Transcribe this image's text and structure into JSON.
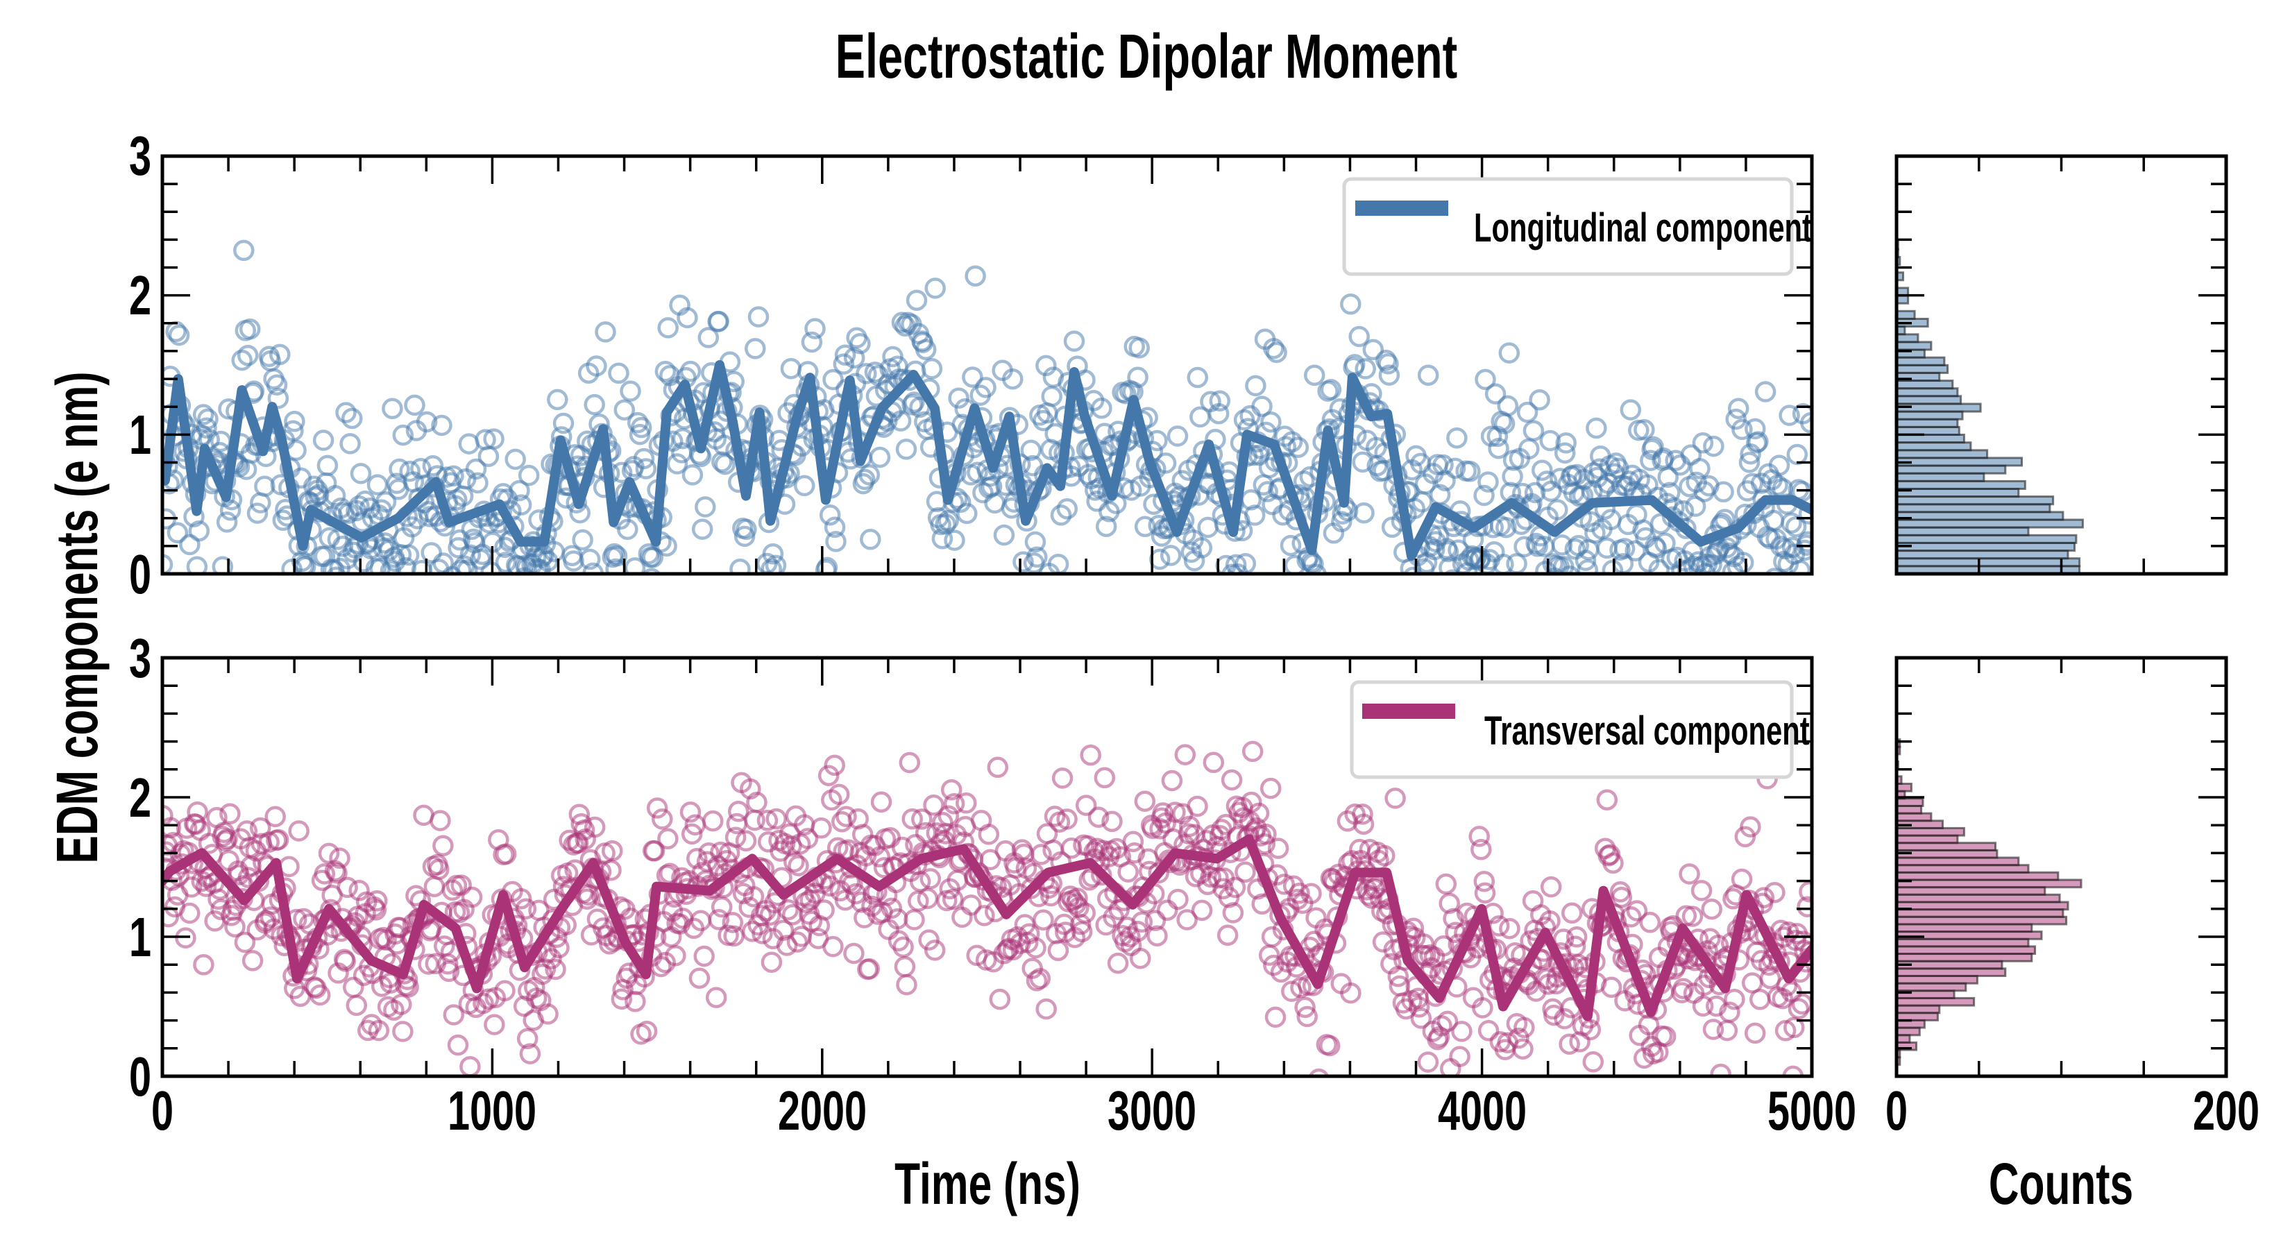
{
  "colors": {
    "longitudinal": "#4477aa",
    "transversal": "#aa3377",
    "hist_edge": "#222222",
    "legend_edge": "#d6d6d6"
  },
  "chart_data": [
    {
      "type": "line",
      "panel": "top-main",
      "title": "Electrostatic Dipolar Moment",
      "xlabel": "Time (ns)",
      "ylabel": "EDM components (e nm)",
      "xlim": [
        0,
        5000
      ],
      "ylim": [
        0,
        3
      ],
      "xticks": [
        "0",
        "1000",
        "2000",
        "3000",
        "4000",
        "5000"
      ],
      "yticks": [
        "0",
        "1",
        "2",
        "3"
      ],
      "legend": {
        "label": "Longitudinal component",
        "placement": "top-right"
      },
      "series": [
        {
          "name": "Longitudinal component",
          "style": "scatter (open circles) + running average line",
          "scatter_spread": 0.35,
          "x": [
            0,
            8,
            48,
            104,
            128,
            193,
            241,
            305,
            333,
            362,
            426,
            450,
            603,
            715,
            829,
            869,
            1022,
            1086,
            1158,
            1207,
            1262,
            1336,
            1368,
            1416,
            1496,
            1529,
            1584,
            1632,
            1689,
            1729,
            1769,
            1810,
            1843,
            1923,
            1963,
            2011,
            2084,
            2116,
            2181,
            2277,
            2341,
            2381,
            2462,
            2518,
            2567,
            2617,
            2682,
            2722,
            2764,
            2796,
            2878,
            2944,
            2993,
            3075,
            3172,
            3246,
            3288,
            3370,
            3484,
            3533,
            3582,
            3607,
            3664,
            3713,
            3786,
            3860,
            3975,
            4090,
            4220,
            4335,
            4515,
            4663,
            4777,
            4859,
            4941,
            5000
          ],
          "y": [
            0.8,
            0.67,
            1.4,
            0.45,
            0.9,
            0.55,
            1.32,
            0.88,
            1.2,
            0.96,
            0.2,
            0.46,
            0.26,
            0.4,
            0.66,
            0.37,
            0.5,
            0.23,
            0.23,
            0.96,
            0.5,
            1.04,
            0.37,
            0.66,
            0.23,
            1.16,
            1.36,
            0.9,
            1.5,
            1.09,
            0.56,
            1.16,
            0.38,
            1.12,
            1.41,
            0.53,
            1.39,
            0.81,
            1.19,
            1.43,
            1.19,
            0.53,
            1.19,
            0.76,
            1.13,
            0.38,
            0.76,
            0.63,
            1.45,
            1.13,
            0.56,
            1.25,
            0.8,
            0.3,
            0.93,
            0.3,
            1.0,
            0.93,
            0.17,
            1.03,
            0.51,
            1.41,
            1.13,
            1.15,
            0.13,
            0.48,
            0.33,
            0.51,
            0.3,
            0.51,
            0.53,
            0.23,
            0.33,
            0.53,
            0.53,
            0.46
          ]
        }
      ]
    },
    {
      "type": "line",
      "panel": "bottom-main",
      "xlabel": "Time (ns)",
      "xlim": [
        0,
        5000
      ],
      "ylim": [
        0,
        3
      ],
      "xticks": [
        "0",
        "1000",
        "2000",
        "3000",
        "4000",
        "5000"
      ],
      "yticks": [
        "0",
        "1",
        "2",
        "3"
      ],
      "legend": {
        "label": "Transversal component",
        "placement": "top-right"
      },
      "series": [
        {
          "name": "Transversal component",
          "style": "scatter (open circles) + running average line",
          "scatter_spread": 0.3,
          "x": [
            0,
            23,
            120,
            248,
            345,
            408,
            505,
            633,
            730,
            793,
            889,
            953,
            1033,
            1098,
            1210,
            1306,
            1403,
            1466,
            1498,
            1659,
            1788,
            1883,
            2045,
            2173,
            2301,
            2429,
            2558,
            2685,
            2813,
            2941,
            3069,
            3197,
            3294,
            3390,
            3502,
            3615,
            3711,
            3775,
            3871,
            3999,
            4064,
            4192,
            4320,
            4368,
            4512,
            4608,
            4737,
            4802,
            4930,
            5000
          ],
          "y": [
            1.4,
            1.47,
            1.6,
            1.26,
            1.53,
            0.7,
            1.2,
            0.83,
            0.73,
            1.23,
            1.06,
            0.63,
            1.3,
            0.78,
            1.2,
            1.53,
            0.96,
            0.73,
            1.36,
            1.33,
            1.56,
            1.3,
            1.56,
            1.36,
            1.56,
            1.63,
            1.16,
            1.46,
            1.53,
            1.23,
            1.6,
            1.56,
            1.7,
            1.13,
            0.66,
            1.46,
            1.46,
            0.83,
            0.56,
            1.2,
            0.5,
            1.03,
            0.43,
            1.33,
            0.46,
            1.06,
            0.63,
            1.3,
            0.7,
            0.91
          ]
        }
      ]
    },
    {
      "type": "bar",
      "orientation": "horizontal",
      "panel": "top-hist",
      "name": "Longitudinal component histogram",
      "xlabel": "Counts",
      "xlim": [
        0,
        200
      ],
      "ylim": [
        0,
        3
      ],
      "xticks": [
        "0",
        "200"
      ],
      "bin_start": 0.0,
      "bin_width": 0.0555,
      "counts": [
        111,
        111,
        104,
        108,
        109,
        80,
        113,
        101,
        93,
        95,
        74,
        78,
        53,
        66,
        76,
        55,
        45,
        41,
        38,
        37,
        40,
        51,
        39,
        37,
        34,
        26,
        31,
        29,
        17,
        21,
        13,
        5,
        19,
        11,
        0,
        7,
        7,
        0,
        4,
        0,
        2,
        1,
        1
      ]
    },
    {
      "type": "bar",
      "orientation": "horizontal",
      "panel": "bottom-hist",
      "name": "Transversal component histogram",
      "xlabel": "Counts",
      "xlim": [
        0,
        200
      ],
      "ylim": [
        0,
        3
      ],
      "xticks": [
        "0",
        "200"
      ],
      "bin_start": 0.083,
      "bin_width": 0.053,
      "counts": [
        2,
        2,
        12,
        8,
        14,
        17,
        25,
        26,
        47,
        35,
        42,
        49,
        66,
        64,
        82,
        84,
        80,
        88,
        82,
        103,
        101,
        104,
        99,
        90,
        112,
        98,
        80,
        74,
        61,
        60,
        37,
        41,
        28,
        21,
        15,
        16,
        5,
        9,
        3,
        0,
        1,
        0,
        2,
        2
      ]
    }
  ],
  "labels": {
    "title": "Electrostatic Dipolar Moment",
    "ylabel": "EDM components (e nm)",
    "xlabel_main": "Time (ns)",
    "xlabel_hist": "Counts",
    "legend_top": "Longitudinal component",
    "legend_bottom": "Transversal component",
    "yticks": [
      "0",
      "1",
      "2",
      "3"
    ],
    "xticks_main": [
      "0",
      "1000",
      "2000",
      "3000",
      "4000",
      "5000"
    ],
    "xticks_hist": [
      "0",
      "200"
    ]
  }
}
